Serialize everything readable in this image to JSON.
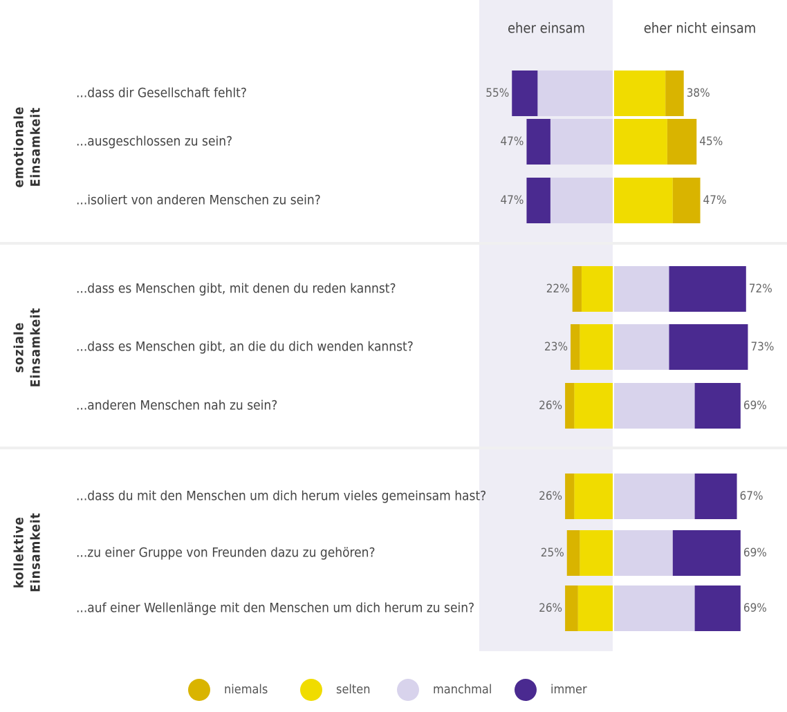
{
  "chart_data": {
    "type": "diverging_bar",
    "columns": [
      "eher einsam",
      "eher nicht einsam"
    ],
    "series": [
      {
        "name": "niemals",
        "color": "#d9b400"
      },
      {
        "name": "selten",
        "color": "#f0dc00"
      },
      {
        "name": "manchmal",
        "color": "#d8d3ec"
      },
      {
        "name": "immer",
        "color": "#4a2a90"
      }
    ],
    "groups": [
      {
        "label": [
          "emotionale",
          "Einsamkeit"
        ],
        "reversed": true,
        "rows": [
          {
            "question": "...dass dir Gesellschaft fehlt?",
            "values": [
              10,
              28,
              41,
              14
            ],
            "left_label": "55%",
            "right_label": "38%"
          },
          {
            "question": "...ausgeschlossen zu sein?",
            "values": [
              16,
              29,
              34,
              13
            ],
            "left_label": "47%",
            "right_label": "45%"
          },
          {
            "question": "...isoliert von anderen Menschen zu sein?",
            "values": [
              15,
              32,
              34,
              13
            ],
            "left_label": "47%",
            "right_label": "47%"
          }
        ]
      },
      {
        "label": [
          "soziale",
          "Einsamkeit"
        ],
        "reversed": false,
        "rows": [
          {
            "question": "...dass es Menschen gibt, mit denen du reden kannst?",
            "values": [
              5,
              17,
              30,
              42
            ],
            "left_label": "22%",
            "right_label": "72%"
          },
          {
            "question": "...dass es Menschen gibt, an die du dich wenden kannst?",
            "values": [
              5,
              18,
              30,
              43
            ],
            "left_label": "23%",
            "right_label": "73%"
          },
          {
            "question": "...anderen Menschen nah zu sein?",
            "values": [
              5,
              21,
              44,
              25
            ],
            "left_label": "26%",
            "right_label": "69%"
          }
        ]
      },
      {
        "label": [
          "kollektive",
          "Einsamkeit"
        ],
        "reversed": false,
        "rows": [
          {
            "question": "...dass du mit den Menschen um dich herum vieles gemeinsam hast?",
            "values": [
              5,
              21,
              44,
              23
            ],
            "left_label": "26%",
            "right_label": "67%"
          },
          {
            "question": "...zu einer Gruppe von Freunden dazu zu gehören?",
            "values": [
              7,
              18,
              32,
              37
            ],
            "left_label": "25%",
            "right_label": "69%"
          },
          {
            "question": "...auf einer Wellenlänge mit den Menschen um dich herum zu sein?",
            "values": [
              7,
              19,
              44,
              25
            ],
            "left_label": "26%",
            "right_label": "69%"
          }
        ]
      }
    ]
  }
}
